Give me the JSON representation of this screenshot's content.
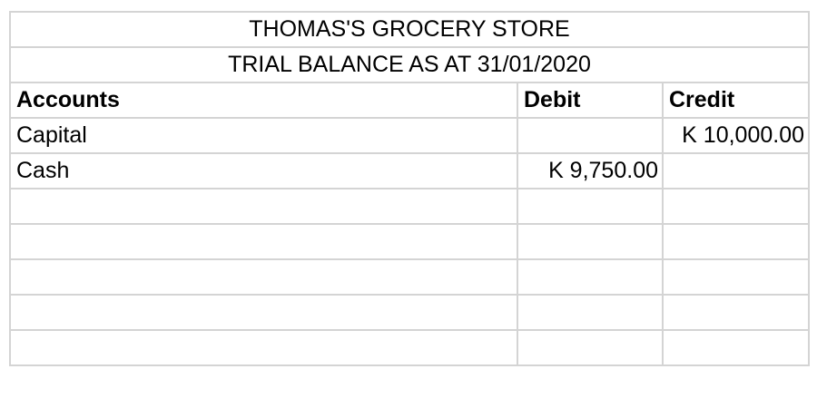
{
  "document": {
    "title": "THOMAS'S GROCERY STORE",
    "subtitle": "TRIAL BALANCE AS AT 31/01/2020",
    "headers": {
      "accounts": "Accounts",
      "debit": "Debit",
      "credit": "Credit"
    },
    "rows": [
      {
        "account": "Capital",
        "debit": "",
        "credit": "K 10,000.00"
      },
      {
        "account": "Cash",
        "debit": "K 9,750.00",
        "credit": ""
      },
      {
        "account": "",
        "debit": "",
        "credit": ""
      },
      {
        "account": "",
        "debit": "",
        "credit": ""
      },
      {
        "account": "",
        "debit": "",
        "credit": ""
      },
      {
        "account": "",
        "debit": "",
        "credit": ""
      },
      {
        "account": "",
        "debit": "",
        "credit": ""
      }
    ]
  }
}
